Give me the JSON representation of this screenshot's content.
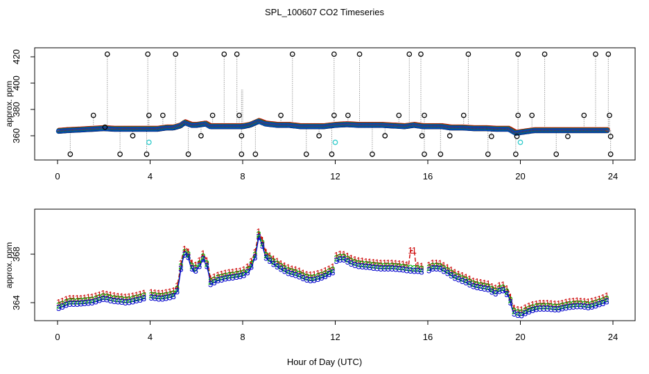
{
  "chart_data": {
    "title": "SPL_100607  CO2 Timeseries",
    "xlabel": "Hour of Day (UTC)",
    "panels": [
      {
        "name": "top",
        "type": "scatter",
        "ylabel": "approx. ppm",
        "xlim": [
          0,
          24
        ],
        "ylim": [
          346,
          425
        ],
        "xticks": [
          0,
          4,
          8,
          12,
          16,
          20,
          24
        ],
        "yticks": [
          360,
          380,
          400,
          420
        ],
        "baseline_points": [
          [
            0.05,
            363.5
          ],
          [
            0.4,
            364
          ],
          [
            1,
            364.5
          ],
          [
            1.5,
            365
          ],
          [
            2,
            365.5
          ],
          [
            2.5,
            365
          ],
          [
            3,
            365
          ],
          [
            3.5,
            365
          ],
          [
            3.85,
            365
          ],
          [
            4,
            365
          ],
          [
            4.3,
            365
          ],
          [
            4.7,
            366
          ],
          [
            5,
            366
          ],
          [
            5.3,
            367.5
          ],
          [
            5.5,
            370
          ],
          [
            5.8,
            368
          ],
          [
            6,
            368
          ],
          [
            6.4,
            369
          ],
          [
            6.6,
            367
          ],
          [
            7,
            367
          ],
          [
            7.5,
            367
          ],
          [
            8,
            367
          ],
          [
            8.3,
            368
          ],
          [
            8.7,
            371
          ],
          [
            9,
            369
          ],
          [
            9.5,
            368
          ],
          [
            10,
            368
          ],
          [
            10.5,
            367
          ],
          [
            11,
            367
          ],
          [
            11.5,
            367
          ],
          [
            12,
            368
          ],
          [
            12.5,
            368.5
          ],
          [
            13,
            368
          ],
          [
            13.5,
            368
          ],
          [
            14,
            368
          ],
          [
            14.5,
            367.5
          ],
          [
            15,
            367
          ],
          [
            15.4,
            368
          ],
          [
            15.8,
            367
          ],
          [
            16.2,
            367
          ],
          [
            16.6,
            367
          ],
          [
            17,
            366
          ],
          [
            17.5,
            366
          ],
          [
            18,
            365.5
          ],
          [
            18.5,
            365.5
          ],
          [
            19,
            365
          ],
          [
            19.5,
            365
          ],
          [
            19.8,
            362
          ],
          [
            20.2,
            363
          ],
          [
            20.6,
            364
          ],
          [
            21,
            364
          ],
          [
            21.5,
            364
          ],
          [
            22,
            364
          ],
          [
            22.5,
            364
          ],
          [
            23,
            364
          ],
          [
            23.5,
            364
          ],
          [
            23.8,
            364
          ]
        ],
        "spikes_high": [
          2.15,
          3.9,
          5.1,
          7.2,
          7.75,
          10.15,
          11.95,
          13.05,
          15.2,
          15.7,
          17.75,
          19.9,
          21.05,
          23.25,
          23.8
        ],
        "spikes_low": [
          0.55,
          2.7,
          3.85,
          5.65,
          7.95,
          8.55,
          10.75,
          11.85,
          13.6,
          15.85,
          16.55,
          18.6,
          19.8,
          21.55,
          23.9
        ],
        "mid_spikes": [
          [
            1.55,
            375.5
          ],
          [
            2.05,
            366.5
          ],
          [
            3.25,
            360
          ],
          [
            3.95,
            375.5
          ],
          [
            4.55,
            375.5
          ],
          [
            6.2,
            360
          ],
          [
            6.7,
            375.5
          ],
          [
            7.95,
            360
          ],
          [
            7.85,
            375.5
          ],
          [
            9.65,
            375.5
          ],
          [
            11.3,
            360
          ],
          [
            11.95,
            375.5
          ],
          [
            12.55,
            375.5
          ],
          [
            14.15,
            360
          ],
          [
            14.75,
            375.5
          ],
          [
            15.75,
            360
          ],
          [
            15.85,
            375.5
          ],
          [
            16.95,
            360
          ],
          [
            17.55,
            375.5
          ],
          [
            18.75,
            359.5
          ],
          [
            19.85,
            359.5
          ],
          [
            19.9,
            375.5
          ],
          [
            20.5,
            375.5
          ],
          [
            22.05,
            359.5
          ],
          [
            22.75,
            375.5
          ],
          [
            23.85,
            375.5
          ],
          [
            23.9,
            359.5
          ]
        ],
        "cyan_points": [
          [
            3.95,
            355
          ],
          [
            12,
            355
          ],
          [
            20,
            355
          ]
        ]
      },
      {
        "name": "bottom",
        "type": "line",
        "ylabel": "approx. ppm",
        "xlim": [
          0,
          24
        ],
        "ylim": [
          362.3,
          371.4
        ],
        "xticks": [
          0,
          4,
          8,
          12,
          16,
          20,
          24
        ],
        "yticks": [
          364,
          368
        ],
        "series": [
          {
            "name": "1",
            "color": "#cc0000",
            "offset": 0.45
          },
          {
            "name": "2",
            "color": "#00aa00",
            "offset": 0.2
          },
          {
            "name": "3",
            "color": "#0000cc",
            "offset": 0.0
          }
        ],
        "profile": [
          [
            0,
            363.5
          ],
          [
            0.5,
            363.9
          ],
          [
            1,
            363.9
          ],
          [
            1.5,
            364
          ],
          [
            2,
            364.3
          ],
          [
            2.5,
            364.1
          ],
          [
            3,
            364
          ],
          [
            3.5,
            364.2
          ],
          [
            3.85,
            364.4
          ],
          [
            4,
            364.4
          ],
          [
            4.5,
            364.3
          ],
          [
            5,
            364.5
          ],
          [
            5.2,
            365
          ],
          [
            5.3,
            366.5
          ],
          [
            5.45,
            367.9
          ],
          [
            5.6,
            368.1
          ],
          [
            5.75,
            367
          ],
          [
            5.9,
            366.5
          ],
          [
            6.1,
            366.9
          ],
          [
            6.3,
            367.6
          ],
          [
            6.5,
            366.8
          ],
          [
            6.6,
            365.5
          ],
          [
            6.9,
            365.8
          ],
          [
            7.3,
            366
          ],
          [
            7.7,
            366.1
          ],
          [
            8,
            366.2
          ],
          [
            8.3,
            366.6
          ],
          [
            8.55,
            367.8
          ],
          [
            8.7,
            369.5
          ],
          [
            8.85,
            368.7
          ],
          [
            9,
            367.7
          ],
          [
            9.3,
            367.2
          ],
          [
            9.7,
            366.7
          ],
          [
            10,
            366.4
          ],
          [
            10.4,
            366.2
          ],
          [
            10.7,
            365.9
          ],
          [
            11,
            365.8
          ],
          [
            11.5,
            366.1
          ],
          [
            11.9,
            366.5
          ],
          [
            12,
            367.4
          ],
          [
            12.3,
            367.6
          ],
          [
            12.7,
            367.2
          ],
          [
            13,
            367
          ],
          [
            13.5,
            366.9
          ],
          [
            14,
            366.8
          ],
          [
            14.5,
            366.8
          ],
          [
            15,
            366.7
          ],
          [
            15.3,
            366.6
          ],
          [
            15.6,
            366.6
          ],
          [
            15.9,
            366.5
          ],
          [
            16.2,
            366.8
          ],
          [
            16.5,
            366.8
          ],
          [
            16.8,
            366.5
          ],
          [
            17.2,
            366
          ],
          [
            17.6,
            365.7
          ],
          [
            18,
            365.3
          ],
          [
            18.3,
            365.2
          ],
          [
            18.6,
            365.1
          ],
          [
            18.9,
            364.7
          ],
          [
            19.2,
            365.1
          ],
          [
            19.5,
            364.5
          ],
          [
            19.7,
            363.1
          ],
          [
            20,
            362.9
          ],
          [
            20.4,
            363.3
          ],
          [
            20.8,
            363.5
          ],
          [
            21.2,
            363.5
          ],
          [
            21.6,
            363.4
          ],
          [
            22,
            363.6
          ],
          [
            22.5,
            363.7
          ],
          [
            23,
            363.6
          ],
          [
            23.5,
            363.9
          ],
          [
            23.75,
            364.1
          ]
        ],
        "red_spike": [
          15.35,
          368.3
        ]
      }
    ]
  }
}
